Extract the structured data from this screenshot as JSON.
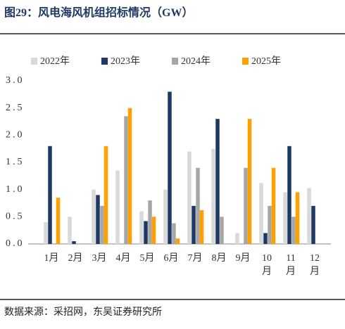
{
  "chart_data": {
    "type": "bar",
    "title": "图29：风电海风机组招标情况（GW）",
    "source": "数据来源：采招网，东吴证券研究所",
    "categories": [
      "1月",
      "2月",
      "3月",
      "4月",
      "5月",
      "6月",
      "7月",
      "8月",
      "9月",
      "10月",
      "11月",
      "12月"
    ],
    "series": [
      {
        "name": "2022年",
        "color": "#d9d9d9",
        "values": [
          0.4,
          0.5,
          1.0,
          1.35,
          0.6,
          1.0,
          1.7,
          1.75,
          0.2,
          1.12,
          0.95,
          1.03
        ]
      },
      {
        "name": "2023年",
        "color": "#1f3864",
        "values": [
          1.8,
          0.05,
          0.9,
          null,
          0.42,
          2.8,
          0.7,
          2.3,
          null,
          0.2,
          1.8,
          0.7
        ]
      },
      {
        "name": "2024年",
        "color": "#a6a6a6",
        "values": [
          null,
          null,
          0.7,
          2.35,
          0.8,
          0.38,
          1.4,
          0.5,
          1.4,
          0.7,
          0.5,
          null
        ]
      },
      {
        "name": "2025年",
        "color": "#ffa000",
        "values": [
          0.85,
          null,
          1.8,
          2.5,
          0.5,
          0.1,
          0.62,
          null,
          2.3,
          1.4,
          0.95,
          null
        ]
      }
    ],
    "ylim": [
      0,
      3.0
    ],
    "yticks": [
      {
        "value": 0,
        "label": "0.0"
      },
      {
        "value": 0.5,
        "label": "0.5"
      },
      {
        "value": 1.0,
        "label": "1.0"
      },
      {
        "value": 1.5,
        "label": "1.5"
      },
      {
        "value": 2.0,
        "label": "2.0"
      },
      {
        "value": 2.5,
        "label": "2.5"
      },
      {
        "value": 3.0,
        "label": "3.0"
      }
    ],
    "legend": "top"
  }
}
